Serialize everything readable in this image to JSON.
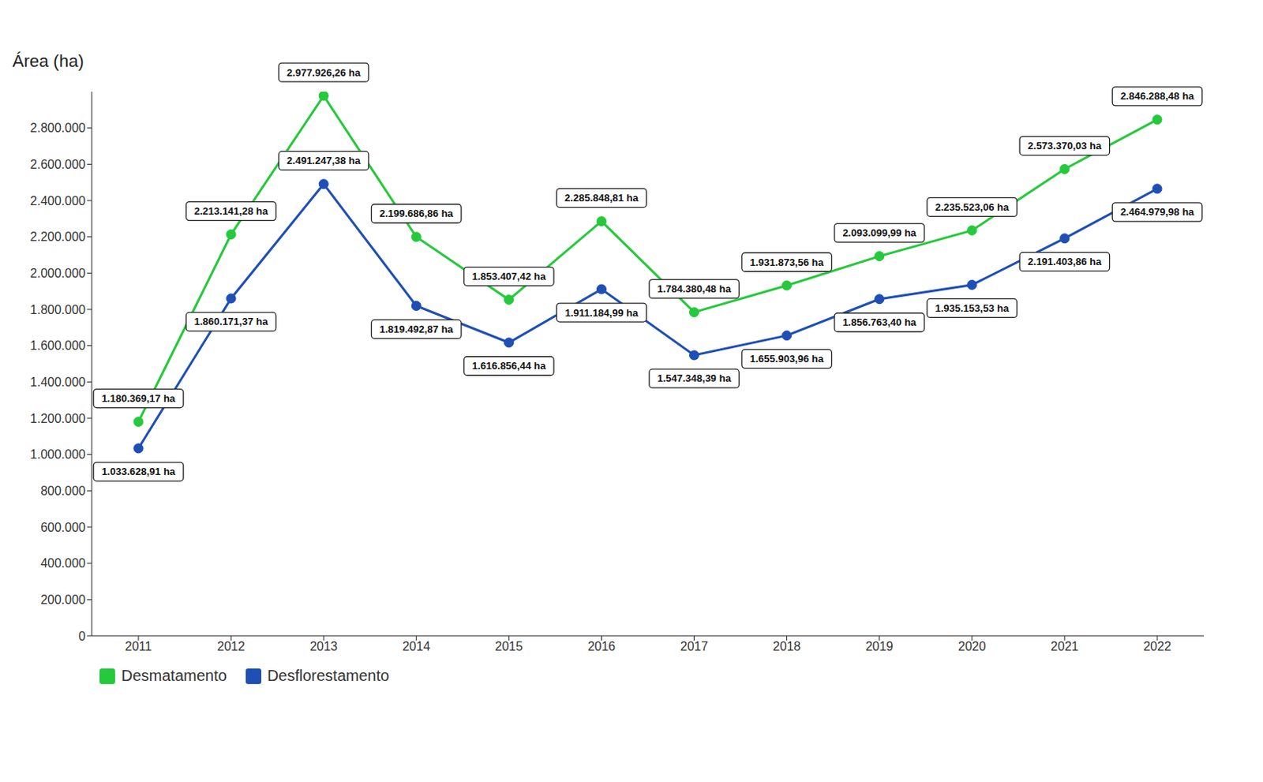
{
  "chart_data": {
    "type": "line",
    "y_label": "Área (ha)",
    "categories": [
      "2011",
      "2012",
      "2013",
      "2014",
      "2015",
      "2016",
      "2017",
      "2018",
      "2019",
      "2020",
      "2021",
      "2022"
    ],
    "series": [
      {
        "name": "Desmatamento",
        "color": "#26c93c",
        "marker": "circle",
        "values": [
          1180369.17,
          2213141.28,
          2977926.26,
          2199686.86,
          1853407.42,
          2285848.81,
          1784380.48,
          1931873.56,
          2093099.99,
          2235523.06,
          2573370.03,
          2846288.48
        ],
        "value_labels": [
          "1.180.369,17 ha",
          "2.213.141,28 ha",
          "2.977.926,26 ha",
          "2.199.686,86 ha",
          "1.853.407,42 ha",
          "2.285.848,81 ha",
          "1.784.380,48 ha",
          "1.931.873,56 ha",
          "2.093.099,99 ha",
          "2.235.523,06 ha",
          "2.573.370,03 ha",
          "2.846.288,48 ha"
        ]
      },
      {
        "name": "Desflorestamento",
        "color": "#1f4fb4",
        "marker": "circle",
        "values": [
          1033628.91,
          1860171.37,
          2491247.38,
          1819492.87,
          1616856.44,
          1911184.99,
          1547348.39,
          1655903.96,
          1856763.4,
          1935153.53,
          2191403.86,
          2464979.98
        ],
        "value_labels": [
          "1.033.628,91 ha",
          "1.860.171,37 ha",
          "2.491.247,38 ha",
          "1.819.492,87 ha",
          "1.616.856,44 ha",
          "1.911.184,99 ha",
          "1.547.348,39 ha",
          "1.655.903,96 ha",
          "1.856.763,40 ha",
          "1.935.153,53 ha",
          "2.191.403,86 ha",
          "2.464.979,98 ha"
        ]
      }
    ],
    "ylim": [
      0,
      3000000
    ],
    "yticks": [
      0,
      {
        "value": 200000,
        "label": "200.000"
      },
      {
        "value": 400000,
        "label": "400.000"
      },
      {
        "value": 600000,
        "label": "600.000"
      },
      {
        "value": 800000,
        "label": "800.000"
      },
      {
        "value": 1000000,
        "label": "1.000.000"
      },
      {
        "value": 1200000,
        "label": "1.200.000"
      },
      {
        "value": 1400000,
        "label": "1.400.000"
      },
      {
        "value": 1600000,
        "label": "1.600.000"
      },
      {
        "value": 1800000,
        "label": "1.800.000"
      },
      {
        "value": 2000000,
        "label": "2.000.000"
      },
      {
        "value": 2200000,
        "label": "2.200.000"
      },
      {
        "value": 2400000,
        "label": "2.400.000"
      },
      {
        "value": 2600000,
        "label": "2.600.000"
      },
      {
        "value": 2800000,
        "label": "2.800.000"
      }
    ],
    "grid": false,
    "legend": "bottom",
    "data_labels": true
  }
}
